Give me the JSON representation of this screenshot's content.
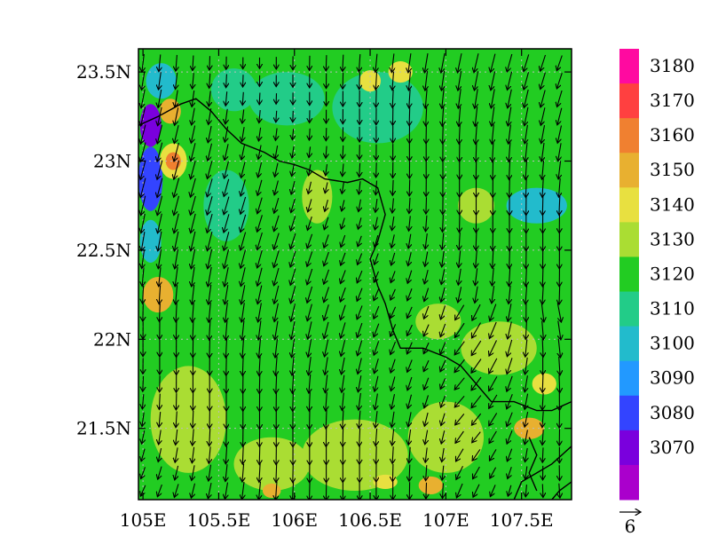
{
  "map": {
    "lon_range": [
      104.97,
      107.83
    ],
    "lat_range": [
      21.1,
      23.63
    ],
    "x_ticks": [
      {
        "value": 105.0,
        "label": "105E"
      },
      {
        "value": 105.5,
        "label": "105.5E"
      },
      {
        "value": 106.0,
        "label": "106E"
      },
      {
        "value": 106.5,
        "label": "106.5E"
      },
      {
        "value": 107.0,
        "label": "107E"
      },
      {
        "value": 107.5,
        "label": "107.5E"
      }
    ],
    "y_ticks": [
      {
        "value": 21.5,
        "label": "21.5N"
      },
      {
        "value": 22.0,
        "label": "22N"
      },
      {
        "value": 22.5,
        "label": "22.5N"
      },
      {
        "value": 23.0,
        "label": "23N"
      },
      {
        "value": 23.5,
        "label": "23.5N"
      }
    ],
    "gridlines": true,
    "field_background": "#22cc22",
    "patches": [
      {
        "lon": 105.05,
        "lat": 23.2,
        "rx": 0.07,
        "ry": 0.12,
        "color": "#7a00dd"
      },
      {
        "lon": 105.05,
        "lat": 22.9,
        "rx": 0.08,
        "ry": 0.18,
        "color": "#3344ff"
      },
      {
        "lon": 105.12,
        "lat": 23.45,
        "rx": 0.1,
        "ry": 0.1,
        "color": "#22bbcc"
      },
      {
        "lon": 105.2,
        "lat": 23.0,
        "rx": 0.09,
        "ry": 0.1,
        "color": "#e8e040"
      },
      {
        "lon": 105.2,
        "lat": 23.0,
        "rx": 0.05,
        "ry": 0.05,
        "color": "#f08030"
      },
      {
        "lon": 105.18,
        "lat": 23.28,
        "rx": 0.07,
        "ry": 0.07,
        "color": "#e8b030"
      },
      {
        "lon": 105.1,
        "lat": 22.25,
        "rx": 0.1,
        "ry": 0.1,
        "color": "#e8b030"
      },
      {
        "lon": 105.05,
        "lat": 22.55,
        "rx": 0.07,
        "ry": 0.12,
        "color": "#22bbcc"
      },
      {
        "lon": 105.6,
        "lat": 23.4,
        "rx": 0.15,
        "ry": 0.12,
        "color": "#22cc88"
      },
      {
        "lon": 105.95,
        "lat": 23.35,
        "rx": 0.25,
        "ry": 0.15,
        "color": "#22cc88"
      },
      {
        "lon": 106.55,
        "lat": 23.3,
        "rx": 0.3,
        "ry": 0.2,
        "color": "#22cc88"
      },
      {
        "lon": 105.55,
        "lat": 22.75,
        "rx": 0.15,
        "ry": 0.2,
        "color": "#22cc88"
      },
      {
        "lon": 106.7,
        "lat": 23.5,
        "rx": 0.08,
        "ry": 0.06,
        "color": "#e8e040"
      },
      {
        "lon": 107.6,
        "lat": 22.75,
        "rx": 0.2,
        "ry": 0.1,
        "color": "#22bbcc"
      },
      {
        "lon": 105.3,
        "lat": 21.55,
        "rx": 0.25,
        "ry": 0.3,
        "color": "#aadd33"
      },
      {
        "lon": 105.85,
        "lat": 21.3,
        "rx": 0.25,
        "ry": 0.15,
        "color": "#aadd33"
      },
      {
        "lon": 106.4,
        "lat": 21.35,
        "rx": 0.35,
        "ry": 0.2,
        "color": "#aadd33"
      },
      {
        "lon": 107.0,
        "lat": 21.45,
        "rx": 0.25,
        "ry": 0.2,
        "color": "#aadd33"
      },
      {
        "lon": 107.35,
        "lat": 21.95,
        "rx": 0.25,
        "ry": 0.15,
        "color": "#aadd33"
      },
      {
        "lon": 106.95,
        "lat": 22.1,
        "rx": 0.15,
        "ry": 0.1,
        "color": "#aadd33"
      },
      {
        "lon": 106.15,
        "lat": 22.8,
        "rx": 0.1,
        "ry": 0.15,
        "color": "#aadd33"
      },
      {
        "lon": 107.2,
        "lat": 22.75,
        "rx": 0.12,
        "ry": 0.1,
        "color": "#aadd33"
      },
      {
        "lon": 106.9,
        "lat": 21.18,
        "rx": 0.08,
        "ry": 0.05,
        "color": "#e8b030"
      },
      {
        "lon": 106.6,
        "lat": 21.2,
        "rx": 0.08,
        "ry": 0.04,
        "color": "#e8e040"
      },
      {
        "lon": 107.55,
        "lat": 21.5,
        "rx": 0.1,
        "ry": 0.06,
        "color": "#e8b030"
      },
      {
        "lon": 107.65,
        "lat": 21.75,
        "rx": 0.08,
        "ry": 0.06,
        "color": "#e8e040"
      },
      {
        "lon": 106.5,
        "lat": 23.45,
        "rx": 0.07,
        "ry": 0.06,
        "color": "#e8e040"
      },
      {
        "lon": 105.85,
        "lat": 21.15,
        "rx": 0.06,
        "ry": 0.04,
        "color": "#e8b030"
      }
    ],
    "coastline": [
      [
        [
          104.97,
          23.2
        ],
        [
          105.1,
          23.25
        ],
        [
          105.25,
          23.32
        ],
        [
          105.35,
          23.35
        ],
        [
          105.45,
          23.28
        ],
        [
          105.55,
          23.18
        ],
        [
          105.65,
          23.1
        ],
        [
          105.8,
          23.05
        ],
        [
          105.9,
          23.0
        ],
        [
          106.0,
          22.98
        ],
        [
          106.1,
          22.95
        ],
        [
          106.2,
          22.9
        ],
        [
          106.35,
          22.88
        ],
        [
          106.45,
          22.9
        ],
        [
          106.55,
          22.85
        ],
        [
          106.6,
          22.7
        ],
        [
          106.55,
          22.55
        ],
        [
          106.5,
          22.45
        ],
        [
          106.55,
          22.3
        ],
        [
          106.6,
          22.2
        ],
        [
          106.65,
          22.05
        ],
        [
          106.7,
          21.95
        ],
        [
          106.85,
          21.95
        ],
        [
          107.0,
          21.9
        ],
        [
          107.1,
          21.85
        ],
        [
          107.2,
          21.75
        ],
        [
          107.3,
          21.65
        ],
        [
          107.45,
          21.65
        ],
        [
          107.6,
          21.6
        ],
        [
          107.7,
          21.6
        ],
        [
          107.83,
          21.65
        ]
      ],
      [
        [
          107.83,
          21.4
        ],
        [
          107.7,
          21.3
        ],
        [
          107.6,
          21.25
        ],
        [
          107.5,
          21.2
        ],
        [
          107.45,
          21.1
        ]
      ],
      [
        [
          107.83,
          21.2
        ],
        [
          107.75,
          21.15
        ],
        [
          107.7,
          21.1
        ]
      ],
      [
        [
          107.55,
          21.45
        ],
        [
          107.6,
          21.35
        ],
        [
          107.55,
          21.25
        ],
        [
          107.6,
          21.15
        ]
      ]
    ],
    "vector_grid": {
      "lon_start": 105.0,
      "lon_step": 0.11,
      "lat_start": 21.15,
      "lat_step": 0.1
    },
    "wind_base": {
      "u": -0.8,
      "v": -6.0
    },
    "vector_style": {
      "color": "#000000",
      "reference_magnitude": 6
    }
  },
  "colorbar": {
    "levels": [
      3180,
      3170,
      3160,
      3150,
      3140,
      3130,
      3120,
      3110,
      3100,
      3090,
      3080,
      3070
    ],
    "tick_labels": [
      "3180",
      "3170",
      "3160",
      "3150",
      "3140",
      "3130",
      "3120",
      "3110",
      "3100",
      "3090",
      "3080",
      "3070"
    ],
    "colors": [
      "#ff0aa0",
      "#ff4040",
      "#f08030",
      "#e8b030",
      "#e8e040",
      "#aadd33",
      "#22cc22",
      "#22cc88",
      "#22bbcc",
      "#2299ff",
      "#3344ff",
      "#7a00dd",
      "#aa00cc"
    ]
  },
  "reference_vector": {
    "label": "6"
  }
}
